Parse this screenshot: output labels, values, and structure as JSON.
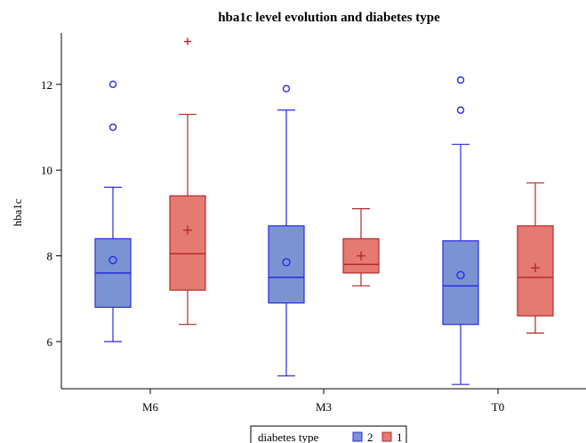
{
  "chart_data": {
    "type": "boxplot",
    "title": "hba1c level evolution and diabetes type",
    "xlabel": "",
    "ylabel": "hba1c",
    "categories": [
      "M6",
      "M3",
      "T0"
    ],
    "y_ticks": [
      "6",
      "8",
      "10",
      "12"
    ],
    "ylim": [
      4.9,
      13.2
    ],
    "grid": false,
    "legend": {
      "title": "diabetes type",
      "position": "bottom-center",
      "entries": [
        "2",
        "1"
      ]
    },
    "series": [
      {
        "name": "2",
        "fill_color": "#7b93d3",
        "stroke_color": "#2a2ae0",
        "mean_marker": "circle",
        "boxes": [
          {
            "category": "M6",
            "whisker_low": 6.0,
            "q1": 6.8,
            "median": 7.6,
            "q3": 8.4,
            "whisker_high": 9.6,
            "mean": 7.9,
            "outliers": [
              11.0,
              12.0
            ]
          },
          {
            "category": "M3",
            "whisker_low": 5.2,
            "q1": 6.9,
            "median": 7.5,
            "q3": 8.7,
            "whisker_high": 11.4,
            "mean": 7.85,
            "outliers": [
              11.9
            ]
          },
          {
            "category": "T0",
            "whisker_low": 5.0,
            "q1": 6.4,
            "median": 7.3,
            "q3": 8.35,
            "whisker_high": 10.6,
            "mean": 7.55,
            "outliers": [
              11.4,
              12.1
            ]
          }
        ]
      },
      {
        "name": "1",
        "fill_color": "#e47a72",
        "stroke_color": "#b52a2a",
        "mean_marker": "plus",
        "boxes": [
          {
            "category": "M6",
            "whisker_low": 6.4,
            "q1": 7.2,
            "median": 8.05,
            "q3": 9.4,
            "whisker_high": 11.3,
            "mean": 8.6,
            "outliers": [
              13.0
            ]
          },
          {
            "category": "M3",
            "whisker_low": 7.3,
            "q1": 7.6,
            "median": 7.8,
            "q3": 8.4,
            "whisker_high": 9.1,
            "mean": 8.0,
            "outliers": []
          },
          {
            "category": "T0",
            "whisker_low": 6.2,
            "q1": 6.6,
            "median": 7.5,
            "q3": 8.7,
            "whisker_high": 9.7,
            "mean": 7.72,
            "outliers": []
          }
        ]
      }
    ]
  }
}
